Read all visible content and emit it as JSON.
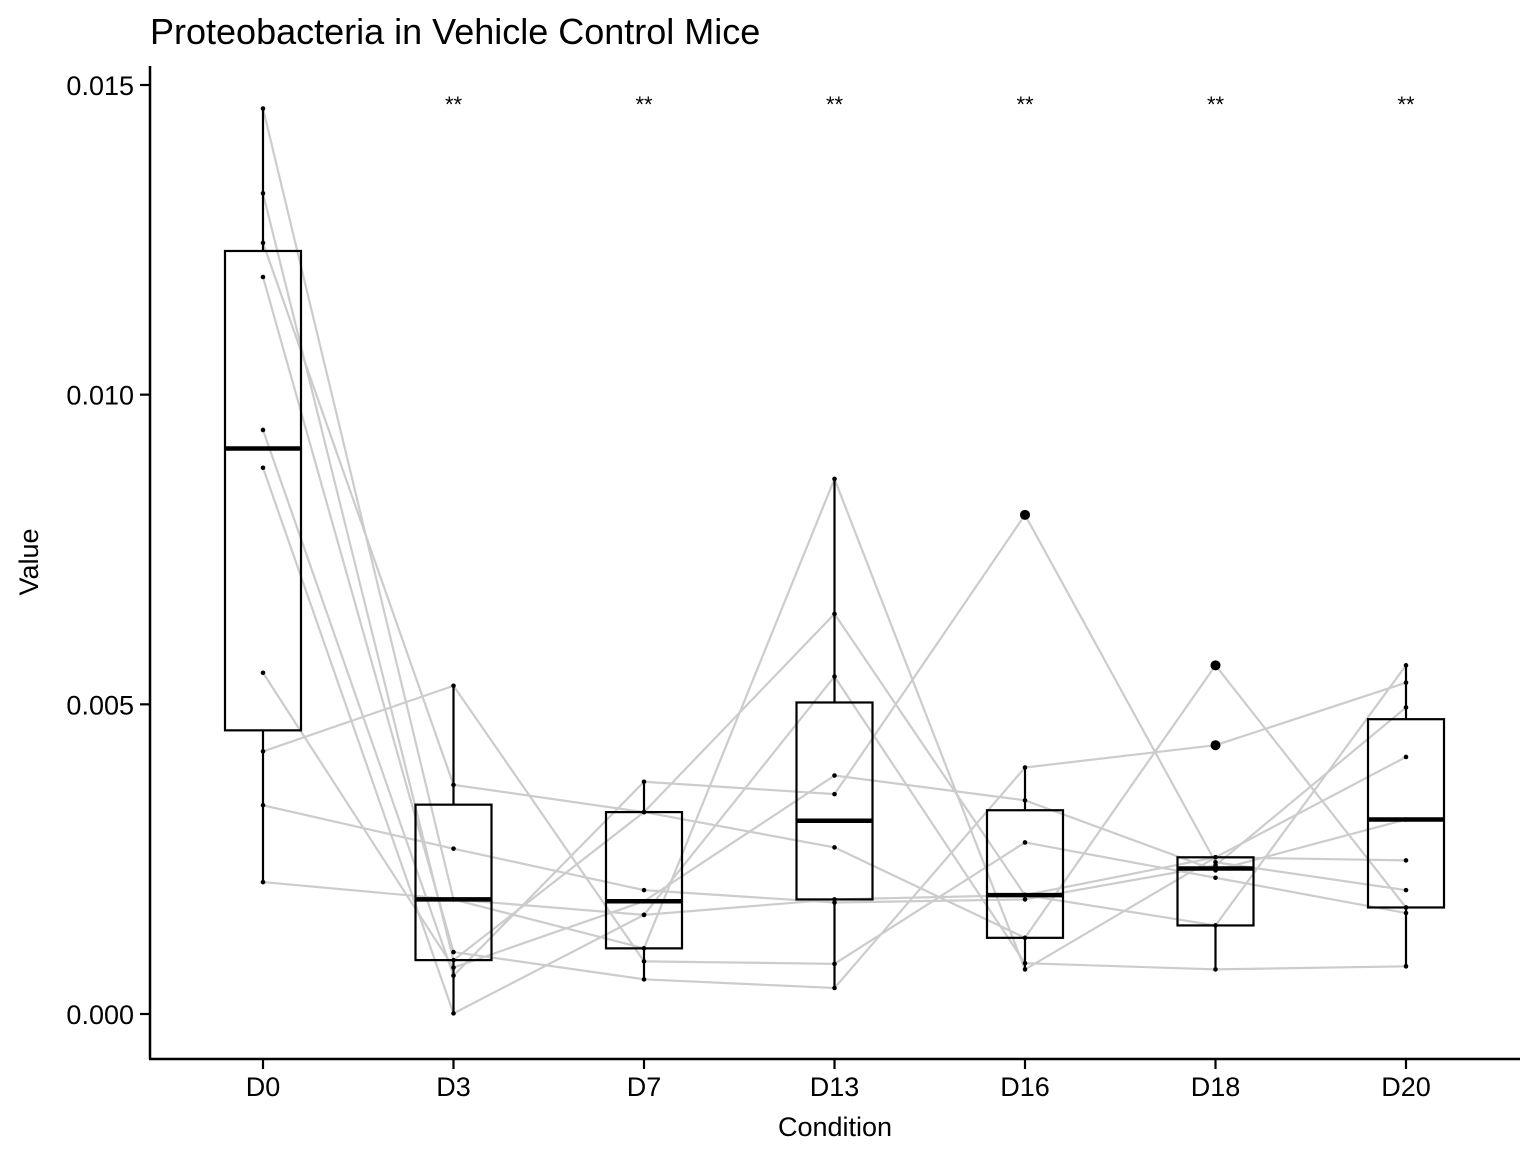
{
  "chart_data": {
    "type": "boxplot",
    "title": "Proteobacteria in Vehicle Control Mice",
    "xlabel": "Condition",
    "ylabel": "Value",
    "ylim": [
      -0.0003,
      0.0155
    ],
    "yticks": [
      "0.000",
      "0.005",
      "0.010",
      "0.015"
    ],
    "ytick_values": [
      0,
      0.005,
      0.01,
      0.015
    ],
    "categories": [
      "D0",
      "D3",
      "D7",
      "D13",
      "D16",
      "D18",
      "D20"
    ],
    "significance": [
      "",
      "**",
      "**",
      "**",
      "**",
      "**",
      "**"
    ],
    "colors": {
      "box": "#000000",
      "paired_line": "#cccccc",
      "point": "#000000"
    },
    "boxes": [
      {
        "category": "D0",
        "whisker_low": 0.00213,
        "q1": 0.00458,
        "median": 0.00913,
        "q3": 0.01232,
        "whisker_high": 0.01462,
        "outliers": []
      },
      {
        "category": "D3",
        "whisker_low": 1e-05,
        "q1": 0.00087,
        "median": 0.00185,
        "q3": 0.00338,
        "whisker_high": 0.0053,
        "outliers": []
      },
      {
        "category": "D7",
        "whisker_low": 0.00056,
        "q1": 0.00106,
        "median": 0.00182,
        "q3": 0.00326,
        "whisker_high": 0.00375,
        "outliers": []
      },
      {
        "category": "D13",
        "whisker_low": 0.00042,
        "q1": 0.00185,
        "median": 0.00312,
        "q3": 0.00503,
        "whisker_high": 0.00864,
        "outliers": []
      },
      {
        "category": "D16",
        "whisker_low": 0.00072,
        "q1": 0.00123,
        "median": 0.00192,
        "q3": 0.00329,
        "whisker_high": 0.00398,
        "outliers": [
          0.00806
        ]
      },
      {
        "category": "D18",
        "whisker_low": 0.00072,
        "q1": 0.00143,
        "median": 0.00235,
        "q3": 0.00253,
        "whisker_high": 0.00253,
        "outliers": [
          0.00563,
          0.00434
        ]
      },
      {
        "category": "D20",
        "whisker_low": 0.00077,
        "q1": 0.00172,
        "median": 0.00314,
        "q3": 0.00476,
        "whisker_high": 0.00563,
        "outliers": []
      }
    ],
    "series": [
      {
        "values": [
          0.01462,
          0.00185,
          0.00106,
          0.00864,
          0.00072,
          0.00253,
          0.00248
        ]
      },
      {
        "values": [
          0.01325,
          0.00087,
          0.00326,
          0.00269,
          0.00123,
          0.00563,
          0.00172
        ]
      },
      {
        "values": [
          0.01245,
          0.0037,
          0.00326,
          0.00646,
          0.00192,
          0.00143,
          0.00563
        ]
      },
      {
        "values": [
          0.0119,
          0.001,
          0.00056,
          0.00042,
          0.00398,
          0.00434,
          0.00535
        ]
      },
      {
        "values": [
          0.00943,
          0.00062,
          0.00375,
          0.00355,
          0.00806,
          0.00245,
          0.002
        ]
      },
      {
        "values": [
          0.00882,
          1e-05,
          0.0016,
          0.00545,
          0.00082,
          0.00072,
          0.00077
        ]
      },
      {
        "values": [
          0.00551,
          0.00075,
          0.00182,
          0.00385,
          0.00345,
          0.00232,
          0.00314
        ]
      },
      {
        "values": [
          0.00424,
          0.0053,
          0.00085,
          0.00081,
          0.00277,
          0.0022,
          0.00163
        ]
      },
      {
        "values": [
          0.00337,
          0.00267,
          0.002,
          0.0018,
          0.00185,
          0.0024,
          0.00495
        ]
      },
      {
        "values": [
          0.00213,
          0.00185,
          0.0016,
          0.00185,
          0.00192,
          0.00253,
          0.00415
        ]
      }
    ]
  }
}
